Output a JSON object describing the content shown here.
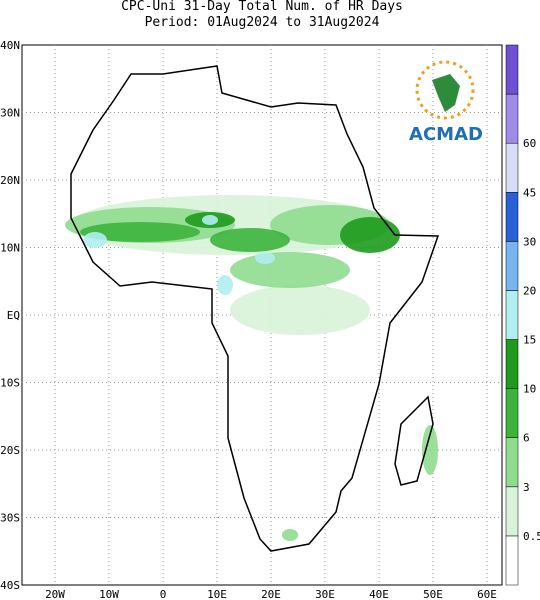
{
  "header": {
    "title": "CPC-Uni 31-Day Total Num. of HR Days",
    "period": "Period: 01Aug2024 to 31Aug2024"
  },
  "map": {
    "lat_labels": [
      "40N",
      "30N",
      "20N",
      "10N",
      "EQ",
      "10S",
      "20S",
      "30S",
      "40S"
    ],
    "lon_labels": [
      "20W",
      "10W",
      "0",
      "10E",
      "20E",
      "30E",
      "40E",
      "50E",
      "60E"
    ]
  },
  "colorbar": {
    "levels": [
      0.5,
      3,
      6,
      10,
      15,
      20,
      30,
      45,
      60
    ]
  },
  "logo": "ACMAD"
}
